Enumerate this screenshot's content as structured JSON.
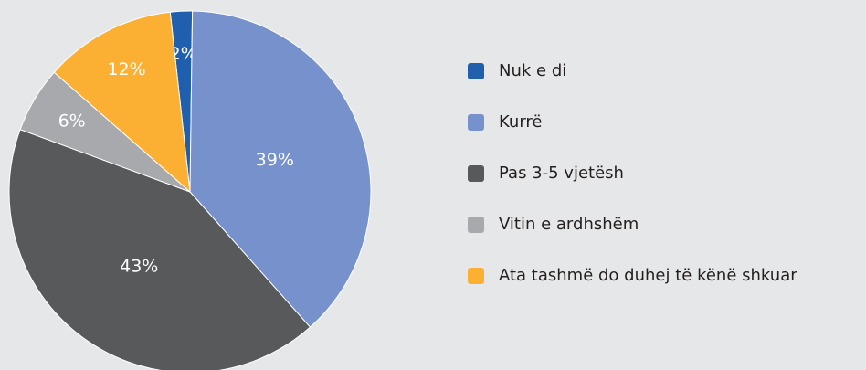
{
  "chart_data": {
    "type": "pie",
    "categories": [
      "Nuk e di",
      "Kurrë",
      "Pas 3-5 vjetësh",
      "Vitin e ardhshëm",
      "Ata tashmë do duhej të kënë shkuar"
    ],
    "values": [
      2,
      39,
      43,
      6,
      12
    ],
    "value_labels": [
      "2%",
      "39%",
      "43%",
      "6%",
      "12%"
    ],
    "colors": [
      "#1f5fae",
      "#7691cc",
      "#58595b",
      "#a7a9ac",
      "#fbb034"
    ],
    "legend": "right"
  }
}
